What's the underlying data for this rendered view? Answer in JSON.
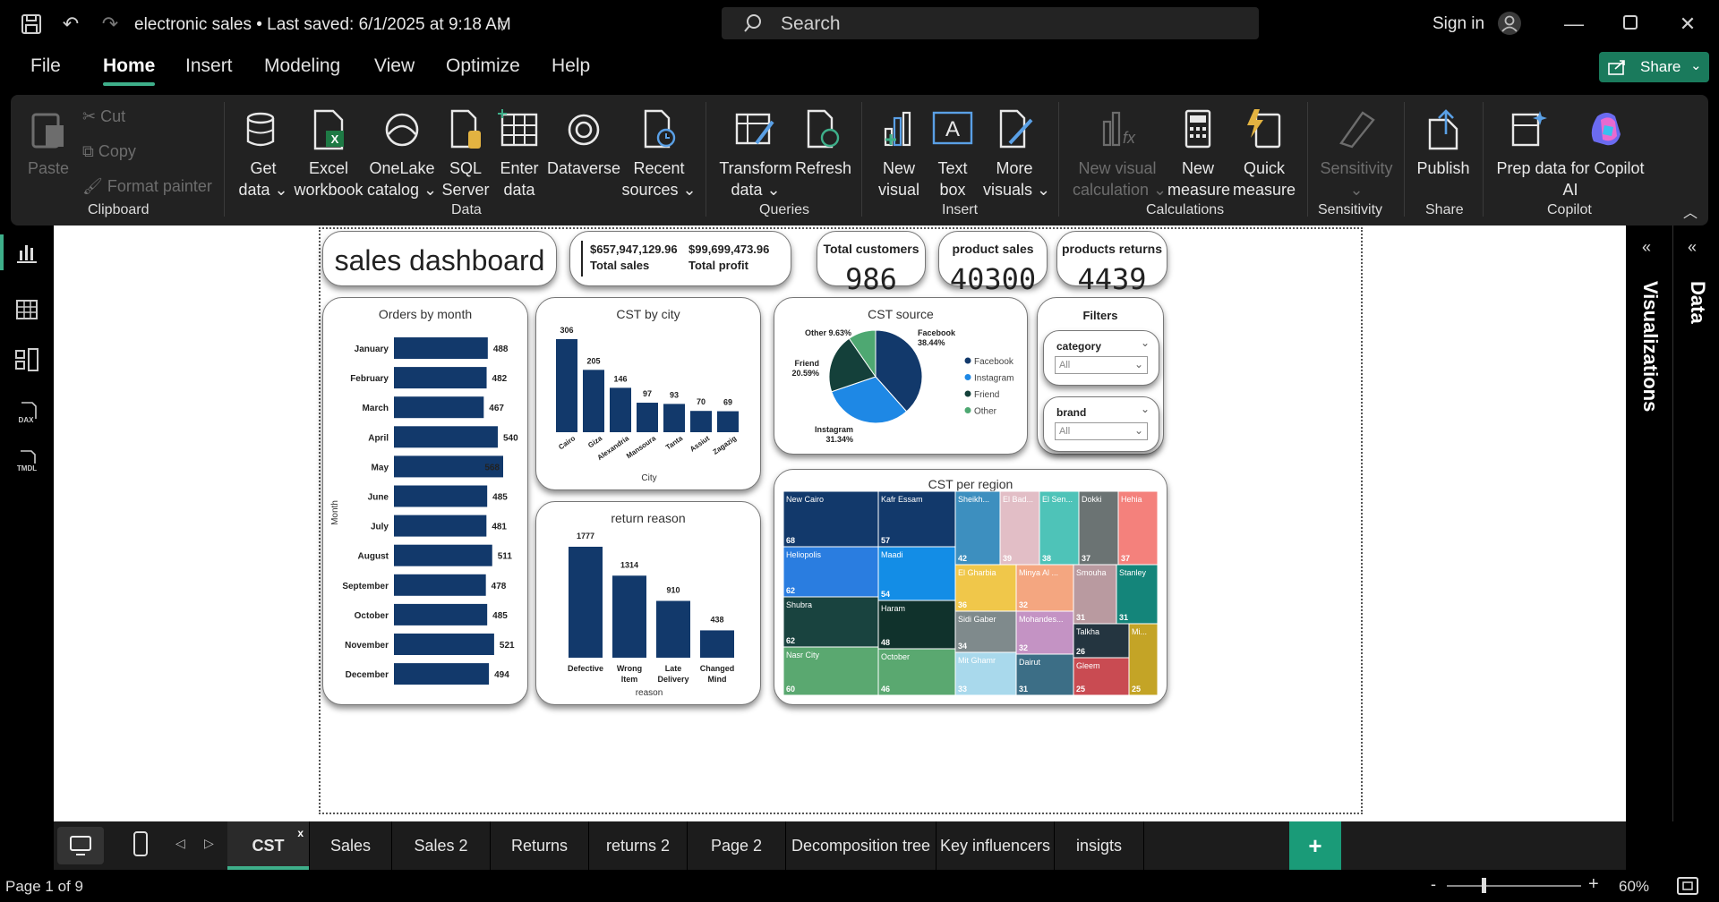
{
  "titlebar": {
    "doc_title": "electronic sales • Last saved: 6/1/2025 at 9:18 AM",
    "search_placeholder": "Search",
    "signin": "Sign in"
  },
  "menu": {
    "items": [
      "File",
      "Home",
      "Insert",
      "Modeling",
      "View",
      "Optimize",
      "Help"
    ],
    "share": "Share"
  },
  "ribbon": {
    "clipboard": {
      "paste": "Paste",
      "cut": "Cut",
      "copy": "Copy",
      "format_painter": "Format painter",
      "group": "Clipboard"
    },
    "data": {
      "get_data": [
        "Get",
        "data ⌄"
      ],
      "excel": [
        "Excel",
        "workbook"
      ],
      "onelake": [
        "OneLake",
        "catalog ⌄"
      ],
      "sql": [
        "SQL",
        "Server"
      ],
      "enter": [
        "Enter",
        "data"
      ],
      "dataverse": [
        "Dataverse",
        ""
      ],
      "recent": [
        "Recent",
        "sources ⌄"
      ],
      "group": "Data"
    },
    "queries": {
      "transform": [
        "Transform",
        "data ⌄"
      ],
      "refresh": [
        "Refresh",
        ""
      ],
      "group": "Queries"
    },
    "insert": {
      "new_visual": [
        "New",
        "visual"
      ],
      "text_box": [
        "Text",
        "box"
      ],
      "more_visuals": [
        "More",
        "visuals ⌄"
      ],
      "group": "Insert"
    },
    "calculations": {
      "new_visual_calc": [
        "New visual",
        "calculation ⌄"
      ],
      "new_measure": [
        "New",
        "measure"
      ],
      "quick_measure": [
        "Quick",
        "measure"
      ],
      "group": "Calculations"
    },
    "sensitivity": {
      "label": [
        "Sensitivity",
        "⌄"
      ],
      "group": "Sensitivity"
    },
    "share": {
      "publish": [
        "Publish",
        ""
      ],
      "group": "Share"
    },
    "copilot": {
      "prep": [
        "Prep data for Copilot",
        "AI"
      ],
      "group": "Copilot"
    }
  },
  "report": {
    "title": "sales dashboard",
    "totals": {
      "sales_value": "$657,947,129.96",
      "sales_label": "Total sales",
      "profit_value": "$99,699,473.96",
      "profit_label": "Total profit"
    },
    "kpis": [
      {
        "label": "Total customers",
        "value": "986"
      },
      {
        "label": "product sales",
        "value": "40300"
      },
      {
        "label": "products returns",
        "value": "4439"
      }
    ],
    "filters": {
      "title": "Filters",
      "category": {
        "label": "category",
        "value": "All"
      },
      "brand": {
        "label": "brand",
        "value": "All"
      }
    }
  },
  "chart_data": [
    {
      "type": "bar",
      "orientation": "horizontal",
      "title": "Orders by month",
      "ylabel": "Month",
      "categories": [
        "January",
        "February",
        "March",
        "April",
        "May",
        "June",
        "July",
        "August",
        "September",
        "October",
        "November",
        "December"
      ],
      "values": [
        488,
        482,
        467,
        540,
        568,
        485,
        481,
        511,
        478,
        485,
        521,
        494
      ],
      "color": "#12396b"
    },
    {
      "type": "bar",
      "title": "CST by city",
      "xlabel": "City",
      "categories": [
        "Cairo",
        "Giza",
        "Alexandria",
        "Mansoura",
        "Tanta",
        "Assiut",
        "Zagazig"
      ],
      "values": [
        306,
        205,
        146,
        97,
        93,
        70,
        69
      ],
      "color": "#12396b"
    },
    {
      "type": "pie",
      "title": "CST source",
      "legend_position": "right",
      "slices": [
        {
          "name": "Facebook",
          "percent": 38.44,
          "label": "38.44%",
          "color": "#12396b"
        },
        {
          "name": "Instagram",
          "percent": 31.34,
          "label": "31.34%",
          "color": "#1e88e5"
        },
        {
          "name": "Friend",
          "percent": 20.59,
          "label": "20.59%",
          "color": "#14403a"
        },
        {
          "name": "Other",
          "percent": 9.63,
          "label": "9.63%",
          "color": "#4ea872"
        }
      ]
    },
    {
      "type": "bar",
      "title": "return reason",
      "xlabel": "reason",
      "categories": [
        "Defective",
        "Wrong Item",
        "Late Delivery",
        "Changed Mind"
      ],
      "values": [
        1777,
        1314,
        910,
        438
      ],
      "color": "#12396b"
    },
    {
      "type": "treemap",
      "title": "CST per region",
      "items": [
        {
          "name": "New Cairo",
          "value": 68,
          "color": "#12396b"
        },
        {
          "name": "Kafr Essam",
          "value": 57,
          "color": "#12396b"
        },
        {
          "name": "Sheikh...",
          "value": 42,
          "color": "#3d8fbf"
        },
        {
          "name": "El Bad...",
          "value": 39,
          "color": "#e2bec6"
        },
        {
          "name": "El Sen...",
          "value": 38,
          "color": "#4ec3b8"
        },
        {
          "name": "Dokki",
          "value": 37,
          "color": "#6b7373"
        },
        {
          "name": "Hehia",
          "value": 37,
          "color": "#f4817c"
        },
        {
          "name": "Heliopolis",
          "value": 62,
          "color": "#2a7de0"
        },
        {
          "name": "Maadi",
          "value": 54,
          "color": "#138de6"
        },
        {
          "name": "El Gharbia",
          "value": 36,
          "color": "#f0c74a"
        },
        {
          "name": "Minya Al ...",
          "value": 32,
          "color": "#f4a680"
        },
        {
          "name": "Smouha",
          "value": 31,
          "color": "#b99aa0"
        },
        {
          "name": "Stanley",
          "value": 31,
          "color": "#14857a"
        },
        {
          "name": "Shubra",
          "value": 62,
          "color": "#19433f"
        },
        {
          "name": "Haram",
          "value": 48,
          "color": "#10322c"
        },
        {
          "name": "Sidi Gaber",
          "value": 34,
          "color": "#7f8a8c"
        },
        {
          "name": "Mohandes...",
          "value": 32,
          "color": "#c493c4"
        },
        {
          "name": "Talkha",
          "value": 26,
          "color": "#243540"
        },
        {
          "name": "Mi...",
          "value": 25,
          "color": "#c4a426"
        },
        {
          "name": "Nasr City",
          "value": 60,
          "color": "#5aa870"
        },
        {
          "name": "October",
          "value": 46,
          "color": "#5aa870"
        },
        {
          "name": "Mit Ghamr",
          "value": 33,
          "color": "#a9d9ec"
        },
        {
          "name": "Dairut",
          "value": 31,
          "color": "#3c6e86"
        },
        {
          "name": "Gleem",
          "value": 25,
          "color": "#c94b52"
        }
      ]
    }
  ],
  "panes": {
    "visualizations": "Visualizations",
    "data": "Data"
  },
  "tabs": [
    "CST",
    "Sales",
    "Sales 2",
    "Returns",
    "returns 2",
    "Page 2",
    "Decomposition tree",
    "Key influencers",
    "insigts"
  ],
  "status": {
    "page": "Page 1 of 9",
    "zoom": "60%"
  }
}
